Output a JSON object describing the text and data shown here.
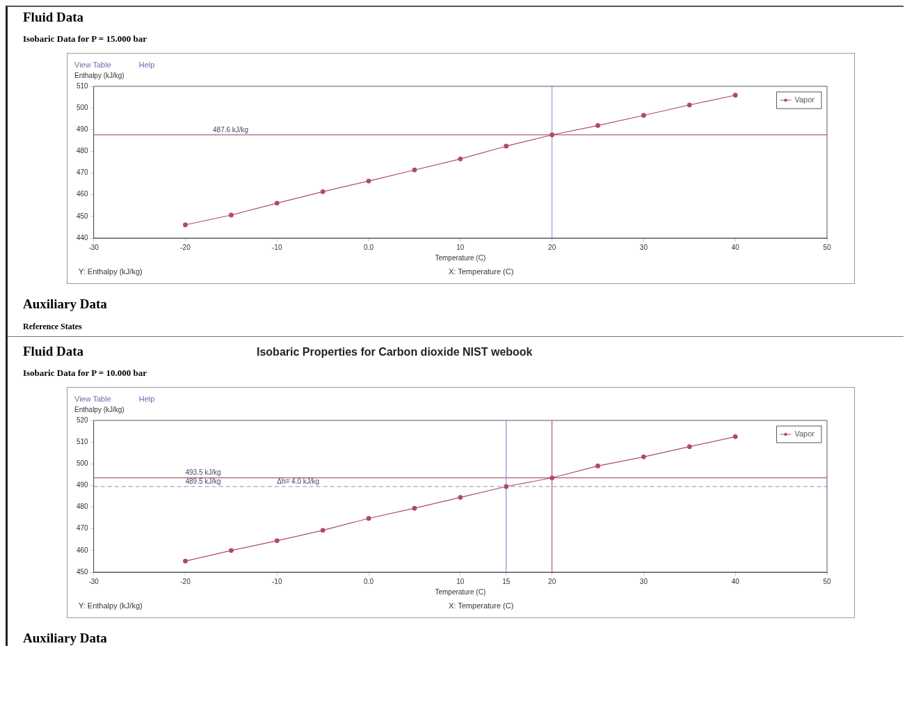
{
  "chart_data": [
    {
      "type": "line",
      "subtitle": "Isobaric Data for P = 15.000 bar",
      "xlabel": "Temperature (C)",
      "ylabel": "Enthalpy (kJ/kg)",
      "x": [
        -20,
        -15,
        -10,
        -5,
        0,
        5,
        10,
        15,
        20,
        25,
        30,
        35,
        40
      ],
      "series": [
        {
          "name": "Vapor",
          "color": "#b04a68",
          "values": [
            446.1,
            450.6,
            456.1,
            461.4,
            466.3,
            471.4,
            476.5,
            482.4,
            487.6,
            491.9,
            496.6,
            501.4,
            505.9
          ]
        }
      ],
      "xlim": [
        -30,
        50
      ],
      "xticks": [
        -30,
        -20,
        -10,
        {
          "value": 0,
          "label": "0.0"
        },
        10,
        20,
        30,
        40,
        50
      ],
      "ylim": [
        440,
        510
      ],
      "yticks": [
        440,
        450,
        460,
        470,
        480,
        490,
        500,
        510
      ],
      "marker": "circle",
      "legend": "top right",
      "ref_lines": [
        {
          "axis": "y",
          "value": 487.6,
          "color": "#a03a50"
        },
        {
          "axis": "x",
          "value": 20,
          "color": "#8a8ad0"
        }
      ],
      "annotations": [
        "Fluid Data",
        "View Table",
        "Help",
        "Y: Enthalpy (kJ/kg)",
        "X: Temperature (C)",
        "Auxiliary Data",
        "Reference States",
        {
          "text": "487.6 kJ/kg",
          "x": -17,
          "y": 487.6
        }
      ]
    },
    {
      "type": "line",
      "title": "Isobaric Properties for Carbon dioxide NIST webook",
      "subtitle": "Isobaric Data for P = 10.000 bar",
      "xlabel": "Temperature (C)",
      "ylabel": "Enthalpy (kJ/kg)",
      "x": [
        -20,
        -15,
        -10,
        -5,
        0,
        5,
        10,
        15,
        20,
        25,
        30,
        35,
        40
      ],
      "series": [
        {
          "name": "Vapor",
          "color": "#b04a68",
          "values": [
            455.1,
            460.0,
            464.5,
            469.3,
            474.8,
            479.5,
            484.5,
            489.5,
            493.5,
            499.0,
            503.2,
            507.9,
            512.5
          ]
        }
      ],
      "xlim": [
        -30,
        50
      ],
      "xticks": [
        -30,
        -20,
        -10,
        {
          "value": 0,
          "label": "0.0"
        },
        10,
        15,
        20,
        30,
        40,
        50
      ],
      "ylim": [
        450,
        520
      ],
      "yticks": [
        450,
        460,
        470,
        480,
        490,
        500,
        510,
        520
      ],
      "marker": "circle",
      "legend": "top right",
      "ref_lines": [
        {
          "axis": "y",
          "value": 493.5,
          "color": "#a03a50"
        },
        {
          "axis": "x",
          "value": 20,
          "color": "#a03a50"
        },
        {
          "axis": "y",
          "value": 489.5,
          "color": "#8a8ad0",
          "line_style": "dashed"
        },
        {
          "axis": "x",
          "value": 15,
          "color": "#7a7ad0"
        }
      ],
      "annotations": [
        "Fluid Data",
        "View Table",
        "Help",
        "Y: Enthalpy (kJ/kg)",
        "X: Temperature (C)",
        "Auxiliary Data",
        {
          "text": "493.5 kJ/kg",
          "x": -20,
          "y": 493.5
        },
        {
          "text": "489.5 kJ/kg",
          "x": -20,
          "y": 489.5
        },
        {
          "text": "Δh= 4.0 kJ/kg",
          "x": -10,
          "y": 489.5
        }
      ]
    }
  ]
}
